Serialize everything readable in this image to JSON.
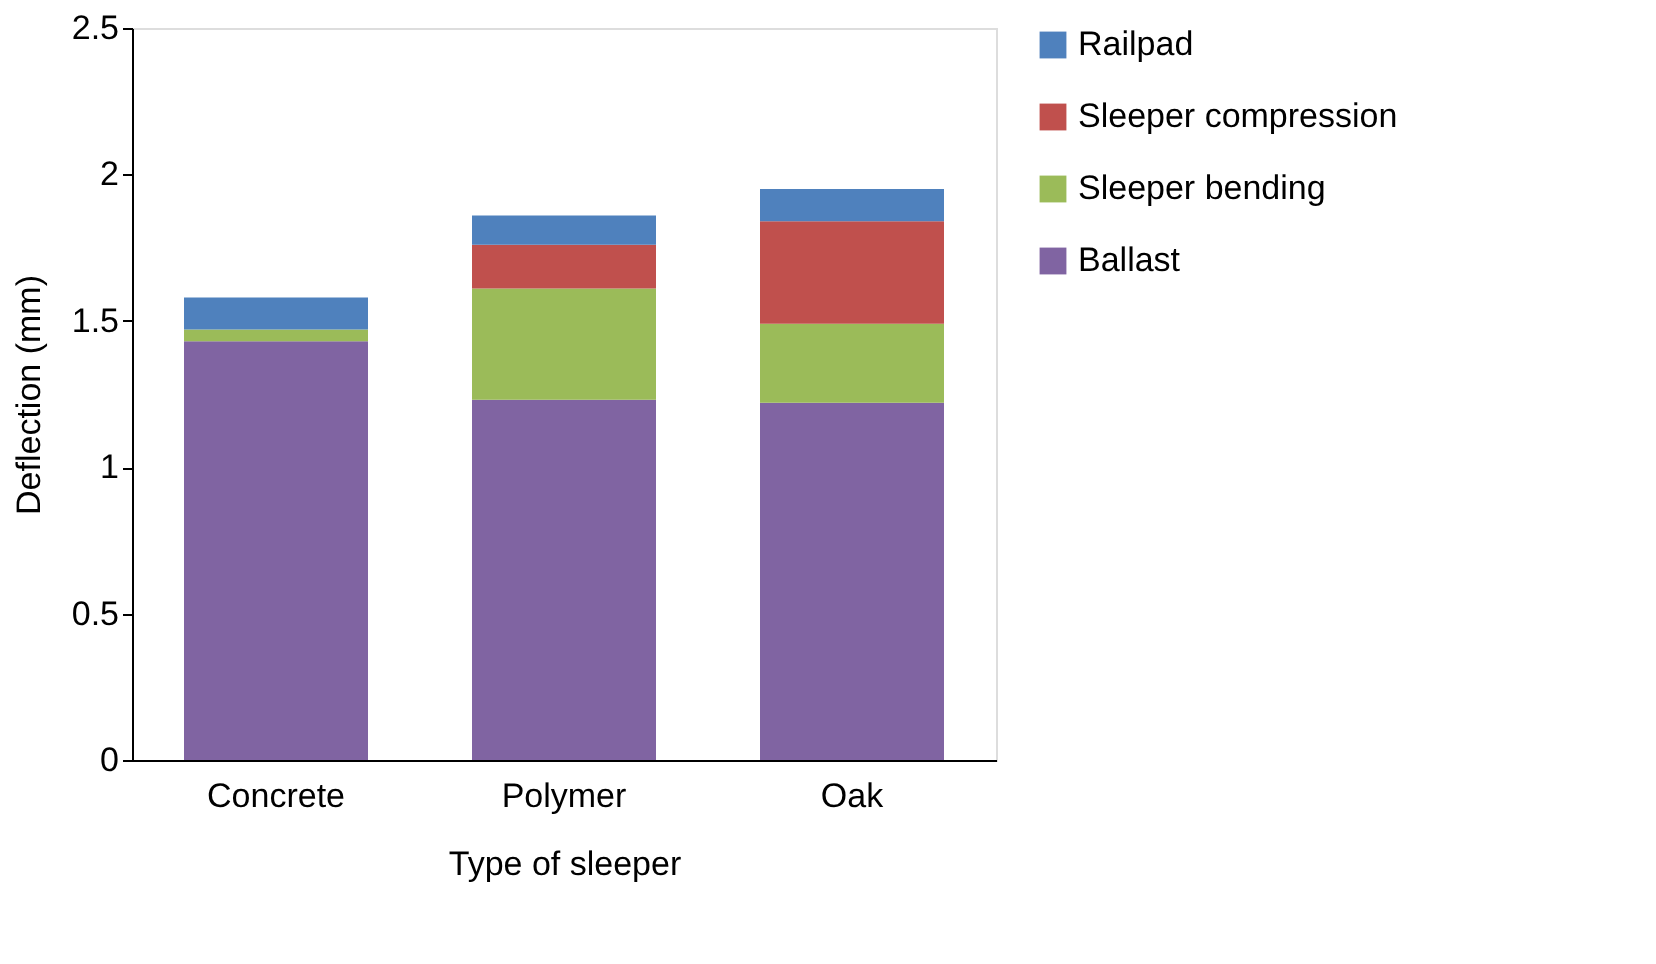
{
  "chart_data": {
    "type": "bar",
    "stacked": true,
    "xlabel": "Type of sleeper",
    "ylabel": "Deflection (mm)",
    "categories": [
      "Concrete",
      "Polymer",
      "Oak"
    ],
    "series": [
      {
        "name": "Ballast",
        "color": "#8064a2",
        "values": [
          1.43,
          1.23,
          1.22
        ]
      },
      {
        "name": "Sleeper bending",
        "color": "#9bbb59",
        "values": [
          0.04,
          0.38,
          0.27
        ]
      },
      {
        "name": "Sleeper compression",
        "color": "#c0504d",
        "values": [
          0,
          0.15,
          0.35
        ]
      },
      {
        "name": "Railpad",
        "color": "#4f81bd",
        "values": [
          0.11,
          0.1,
          0.11
        ]
      }
    ],
    "ylim": [
      0,
      2.5
    ],
    "yticks": [
      0,
      0.5,
      1,
      1.5,
      2,
      2.5
    ],
    "grid": false,
    "legend": "right"
  }
}
